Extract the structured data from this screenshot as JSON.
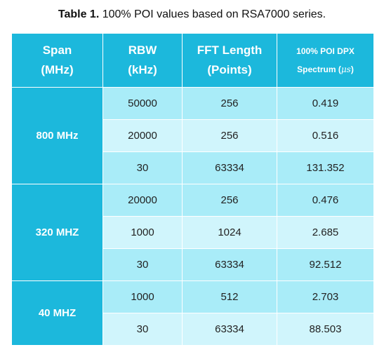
{
  "caption": {
    "label": "Table 1.",
    "text": " 100% POI values based on RSA7000 series."
  },
  "headers": {
    "span": [
      "Span",
      "(MHz)"
    ],
    "rbw": [
      "RBW",
      "(kHz)"
    ],
    "fft": [
      "FFT Length",
      "(Points)"
    ],
    "poi_line1": "100% POI DPX",
    "poi_line2_prefix": "Spectrum (",
    "poi_unit": "μs",
    "poi_line2_suffix": ")"
  },
  "groups": [
    {
      "span": "800 MHz",
      "rows": [
        {
          "rbw": "50000",
          "fft": "256",
          "poi": "0.419"
        },
        {
          "rbw": "20000",
          "fft": "256",
          "poi": "0.516"
        },
        {
          "rbw": "30",
          "fft": "63334",
          "poi": "131.352"
        }
      ]
    },
    {
      "span": "320 MHZ",
      "rows": [
        {
          "rbw": "20000",
          "fft": "256",
          "poi": "0.476"
        },
        {
          "rbw": "1000",
          "fft": "1024",
          "poi": "2.685"
        },
        {
          "rbw": "30",
          "fft": "63334",
          "poi": "92.512"
        }
      ]
    },
    {
      "span": "40 MHZ",
      "rows": [
        {
          "rbw": "1000",
          "fft": "512",
          "poi": "2.703"
        },
        {
          "rbw": "30",
          "fft": "63334",
          "poi": "88.503"
        }
      ]
    }
  ],
  "colors": {
    "header_bg": "#1cb8dc",
    "row_dark": "#a9ecf8",
    "row_light": "#d0f5fc"
  }
}
